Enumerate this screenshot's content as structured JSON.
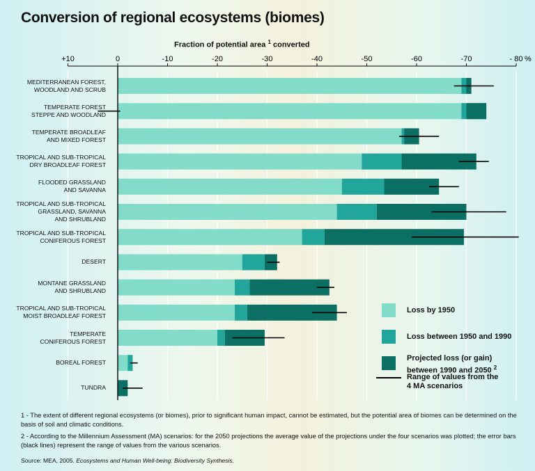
{
  "title": "Conversion of regional ecosystems (biomes)",
  "colors": {
    "loss1950": "#83dcc9",
    "loss1950_1990": "#22a69c",
    "projected": "#0b6f63",
    "range": "#000000",
    "grid": "#ffffff"
  },
  "chart_data": {
    "type": "bar",
    "orientation": "horizontal",
    "stacked": true,
    "title": "Conversion of regional ecosystems (biomes)",
    "xlabel": "Fraction of potential area",
    "xlabel_sup": "1",
    "xlabel_suffix": "converted",
    "xlim": [
      10,
      -80
    ],
    "xticks": [
      {
        "value": 10,
        "label": "+10"
      },
      {
        "value": 0,
        "label": "0"
      },
      {
        "value": -10,
        "label": "-10"
      },
      {
        "value": -20,
        "label": "-20"
      },
      {
        "value": -30,
        "label": "-30"
      },
      {
        "value": -40,
        "label": "-40"
      },
      {
        "value": -50,
        "label": "-50"
      },
      {
        "value": -60,
        "label": "-60"
      },
      {
        "value": -70,
        "label": "-70"
      },
      {
        "value": -80,
        "label": "- 80"
      }
    ],
    "xunit": "%",
    "grid": true,
    "categories": [
      "Mediterranean forest,\nwoodland and scrub",
      "Temperate forest\nsteppe and woodland",
      "Temperate broadleaf\nand mixed forest",
      "Tropical and sub-tropical\ndry broadleaf forest",
      "Flooded grassland\nand savanna",
      "Tropical and sub-tropical\ngrassland, savanna\nand shrubland",
      "Tropical and sub-tropical\nconiferous forest",
      "Desert",
      "Montane grassland\nand shrubland",
      "Tropical and sub-tropical\nmoist broadleaf forest",
      "Temperate\nconiferous forest",
      "Boreal forest",
      "Tundra"
    ],
    "series": [
      {
        "name": "Loss by 1950",
        "values": [
          -69,
          -69,
          -57,
          -49,
          -45,
          -44,
          -37,
          -25,
          -23.5,
          -23.5,
          -20,
          -2,
          0
        ]
      },
      {
        "name": "Loss between 1950 and 1990",
        "values": [
          -1,
          -5,
          -0.5,
          -8,
          -8.5,
          -8,
          -4.5,
          -4.5,
          -3,
          -2.5,
          -1.5,
          -1,
          0
        ]
      },
      {
        "name": "Projected loss (or gain)\nbetween 1990 and 2050",
        "name_sup": "2",
        "values": [
          -1,
          4,
          -3,
          -15,
          -11,
          -18,
          -28,
          -2.5,
          -16,
          -18,
          -8,
          0,
          -2
        ]
      }
    ],
    "range_of_scenarios": {
      "name": "Range of values from the\n4 MA scenarios",
      "values": [
        [
          -67.5,
          -75.5
        ],
        [
          4,
          -0.5
        ],
        [
          -56.5,
          -64.5
        ],
        [
          -68.5,
          -74.5
        ],
        [
          -62.5,
          -68.5
        ],
        [
          -63,
          -78
        ],
        [
          -59,
          -80.5
        ],
        [
          -30,
          -32.5
        ],
        [
          -40,
          -43.5
        ],
        [
          -39,
          -46
        ],
        [
          -23,
          -33.5
        ],
        [
          -2.5,
          -4
        ],
        [
          -1,
          -5
        ]
      ]
    }
  },
  "notes": [
    "1 - The extent of different regional ecosystems (or biomes), prior to significant human impact, cannot be estimated, but the potential area of biomes can be determined on the basis of soil and climatic conditions.",
    "2 - According to the Millennium Assessment (MA) scenarios: for the 2050 projections the average value of the projections under the four scenarios was plotted; the error bars (black lines) represent the range of values from the various scenarios."
  ],
  "source_prefix": "Source: MEA, 2005.",
  "source_title": "Ecosystems and Human Well-being: Biodiversity Synthesis."
}
